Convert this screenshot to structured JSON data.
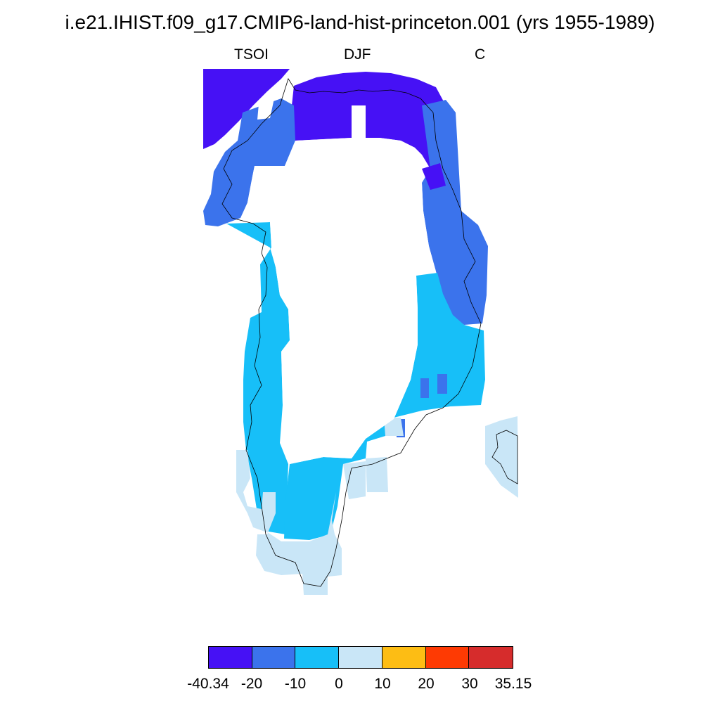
{
  "title": "i.e21.IHIST.f09_g17.CMIP6-land-hist-princeton.001 (yrs 1955-1989)",
  "subtitle": {
    "variable": "TSOI",
    "season": "DJF",
    "units": "C"
  },
  "colorbar": {
    "labels": [
      "-40.34",
      "-20",
      "-10",
      "0",
      "10",
      "20",
      "30",
      "35.15"
    ],
    "colors": [
      "#4611f5",
      "#3b73ec",
      "#17bff8",
      "#c9e6f7",
      "#fdbd14",
      "#fe3a03",
      "#d62c2c"
    ]
  },
  "colors": {
    "coastline": "#000000"
  }
}
